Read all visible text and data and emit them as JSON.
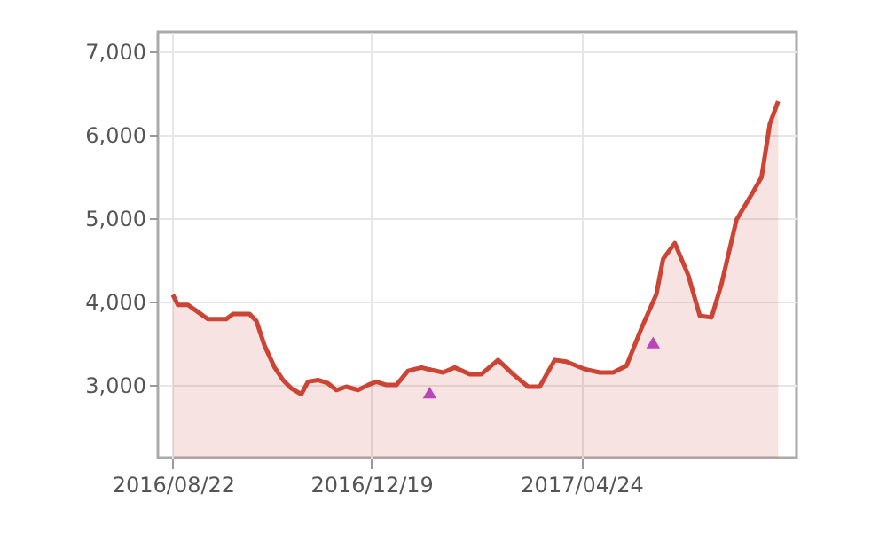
{
  "chart_data": {
    "type": "area",
    "xlim": [
      "2016-08-13",
      "2017-08-31"
    ],
    "ylim": [
      2130,
      7230
    ],
    "xticks": [
      {
        "value": "2016-08-22",
        "label": "2016/08/22"
      },
      {
        "value": "2016-12-19",
        "label": "2016/12/19"
      },
      {
        "value": "2017-04-24",
        "label": "2017/04/24"
      }
    ],
    "yticks": [
      {
        "value": 3000,
        "label": "3,000"
      },
      {
        "value": 4000,
        "label": "4,000"
      },
      {
        "value": 5000,
        "label": "5,000"
      },
      {
        "value": 6000,
        "label": "6,000"
      },
      {
        "value": 7000,
        "label": "7,000"
      }
    ],
    "grid": true,
    "series": [
      {
        "color": "#cc4433",
        "x": [
          "2016-08-22",
          "2016-08-25",
          "2016-08-31",
          "2016-09-05",
          "2016-09-12",
          "2016-09-23",
          "2016-09-27",
          "2016-10-07",
          "2016-10-11",
          "2016-10-16",
          "2016-10-22",
          "2016-10-27",
          "2016-11-01",
          "2016-11-07",
          "2016-11-11",
          "2016-11-17",
          "2016-11-23",
          "2016-11-28",
          "2016-12-04",
          "2016-12-11",
          "2016-12-17",
          "2016-12-22",
          "2016-12-28",
          "2017-01-03",
          "2017-01-10",
          "2017-01-18",
          "2017-01-22",
          "2017-01-31",
          "2017-02-07",
          "2017-02-16",
          "2017-02-23",
          "2017-03-05",
          "2017-03-14",
          "2017-03-23",
          "2017-03-30",
          "2017-04-08",
          "2017-04-15",
          "2017-04-26",
          "2017-05-05",
          "2017-05-13",
          "2017-05-21",
          "2017-05-30",
          "2017-06-08",
          "2017-06-12",
          "2017-06-19",
          "2017-06-27",
          "2017-07-04",
          "2017-07-11",
          "2017-07-17",
          "2017-07-26",
          "2017-08-04",
          "2017-08-10",
          "2017-08-15",
          "2017-08-20"
        ],
        "values": [
          4080,
          3960,
          3960,
          3890,
          3790,
          3790,
          3850,
          3850,
          3770,
          3470,
          3210,
          3060,
          2960,
          2890,
          3040,
          3060,
          3020,
          2940,
          2980,
          2940,
          3000,
          3040,
          3000,
          3000,
          3170,
          3210,
          3190,
          3150,
          3210,
          3130,
          3130,
          3300,
          3130,
          2980,
          2980,
          3300,
          3280,
          3190,
          3150,
          3150,
          3230,
          3680,
          4090,
          4510,
          4700,
          4320,
          3830,
          3810,
          4210,
          4980,
          5280,
          5490,
          6130,
          6400
        ]
      },
      {
        "type": "scatter",
        "color": "#bb44bb",
        "marker": "triangle",
        "x": [
          "2017-01-23",
          "2017-06-06"
        ],
        "values": [
          2910,
          3510
        ]
      }
    ]
  }
}
